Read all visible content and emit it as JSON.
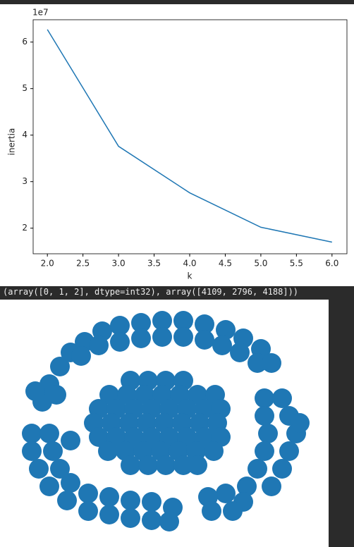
{
  "chart_data": [
    {
      "type": "line",
      "offset_text": "1e7",
      "xlabel": "k",
      "ylabel": "inertia",
      "x": [
        2.0,
        3.0,
        4.0,
        5.0,
        6.0
      ],
      "series": [
        {
          "color": "#1f77b4",
          "values": [
            6.27,
            3.76,
            2.76,
            2.02,
            1.7
          ]
        }
      ],
      "xlim": [
        1.8,
        6.21
      ],
      "ylim": [
        1.45,
        6.48
      ],
      "xticks": [
        {
          "value": 2.0,
          "label": "2.0"
        },
        {
          "value": 2.5,
          "label": "2.5"
        },
        {
          "value": 3.0,
          "label": "3.0"
        },
        {
          "value": 3.5,
          "label": "3.5"
        },
        {
          "value": 4.0,
          "label": "4.0"
        },
        {
          "value": 4.5,
          "label": "4.5"
        },
        {
          "value": 5.0,
          "label": "5.0"
        },
        {
          "value": 5.5,
          "label": "5.5"
        },
        {
          "value": 6.0,
          "label": "6.0"
        }
      ],
      "yticks": [
        2,
        3,
        4,
        5,
        6
      ]
    },
    {
      "type": "scatter",
      "color": "#1f77b4",
      "x": [
        -40,
        -15,
        10,
        35,
        -70,
        -45,
        -20,
        5,
        30,
        55,
        80,
        -85,
        -60,
        -35,
        -10,
        15,
        40,
        65,
        88,
        -92,
        -67,
        -42,
        -17,
        8,
        33,
        58,
        83,
        -85,
        -60,
        -35,
        -10,
        15,
        40,
        65,
        88,
        -72,
        -47,
        -22,
        3,
        28,
        53,
        78,
        -40,
        -15,
        10,
        35,
        55,
        -165,
        -155,
        -140,
        -125,
        -105,
        -110,
        -80,
        -85,
        -55,
        -55,
        -25,
        -25,
        5,
        5,
        35,
        35,
        65,
        65,
        95,
        90,
        120,
        115,
        145,
        140,
        160,
        -145,
        -175,
        -180,
        -155,
        -180,
        -150,
        -170,
        -140,
        -155,
        -125,
        -130,
        -100,
        -100,
        -70,
        -70,
        -40,
        -40,
        -10,
        -10,
        20,
        15,
        -125,
        150,
        175,
        150,
        185,
        155,
        195,
        150,
        185,
        140,
        175,
        125,
        160,
        95,
        120,
        70,
        75,
        105,
        200
      ],
      "y": [
        60,
        60,
        60,
        60,
        40,
        40,
        40,
        40,
        40,
        40,
        40,
        20,
        20,
        20,
        20,
        20,
        20,
        20,
        20,
        0,
        0,
        0,
        0,
        0,
        0,
        0,
        0,
        -20,
        -20,
        -20,
        -20,
        -20,
        -20,
        -20,
        -20,
        -40,
        -40,
        -40,
        -40,
        -40,
        -40,
        -40,
        -60,
        -60,
        -60,
        -60,
        -60,
        30,
        55,
        80,
        100,
        115,
        95,
        130,
        110,
        138,
        115,
        142,
        120,
        145,
        122,
        145,
        122,
        140,
        118,
        132,
        110,
        120,
        100,
        105,
        85,
        85,
        40,
        45,
        -15,
        -15,
        -40,
        -40,
        -65,
        -65,
        -90,
        -85,
        -110,
        -100,
        -125,
        -105,
        -130,
        -110,
        -135,
        -112,
        -138,
        -120,
        -140,
        -25,
        35,
        35,
        10,
        10,
        -15,
        -15,
        -40,
        -40,
        -65,
        -65,
        -90,
        -90,
        -100,
        -112,
        -105,
        -125,
        -125,
        0
      ]
    }
  ],
  "output_text": "(array([0, 1, 2], dtype=int32), array([4109, 2796, 4188]))"
}
